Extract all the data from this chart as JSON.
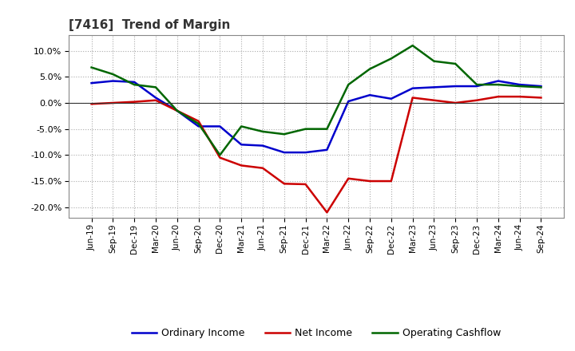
{
  "title": "[7416]  Trend of Margin",
  "x_labels": [
    "Jun-19",
    "Sep-19",
    "Dec-19",
    "Mar-20",
    "Jun-20",
    "Sep-20",
    "Dec-20",
    "Mar-21",
    "Jun-21",
    "Sep-21",
    "Dec-21",
    "Mar-22",
    "Jun-22",
    "Sep-22",
    "Dec-22",
    "Mar-23",
    "Jun-23",
    "Sep-23",
    "Dec-23",
    "Mar-24",
    "Jun-24",
    "Sep-24"
  ],
  "ordinary_income": [
    3.8,
    4.2,
    4.0,
    1.0,
    -1.5,
    -4.5,
    -4.5,
    -8.0,
    -8.2,
    -9.5,
    -9.5,
    -9.0,
    0.3,
    1.5,
    0.8,
    2.8,
    3.0,
    3.2,
    3.2,
    4.2,
    3.5,
    3.2
  ],
  "net_income": [
    -0.2,
    0.0,
    0.2,
    0.5,
    -1.5,
    -3.5,
    -10.5,
    -12.0,
    -12.5,
    -15.5,
    -15.6,
    -21.0,
    -14.5,
    -15.0,
    -15.0,
    1.0,
    0.5,
    0.0,
    0.5,
    1.2,
    1.2,
    1.0
  ],
  "operating_cashflow": [
    6.8,
    5.5,
    3.5,
    3.0,
    -1.5,
    -4.0,
    -10.0,
    -4.5,
    -5.5,
    -6.0,
    -5.0,
    -5.0,
    3.5,
    6.5,
    8.5,
    11.0,
    8.0,
    7.5,
    3.5,
    3.5,
    3.2,
    3.0
  ],
  "ylim": [
    -22,
    13
  ],
  "yticks": [
    -20.0,
    -15.0,
    -10.0,
    -5.0,
    0.0,
    5.0,
    10.0
  ],
  "ordinary_color": "#0000cc",
  "net_income_color": "#cc0000",
  "operating_color": "#006600",
  "background_color": "#ffffff",
  "grid_color": "#aaaaaa",
  "legend_labels": [
    "Ordinary Income",
    "Net Income",
    "Operating Cashflow"
  ]
}
